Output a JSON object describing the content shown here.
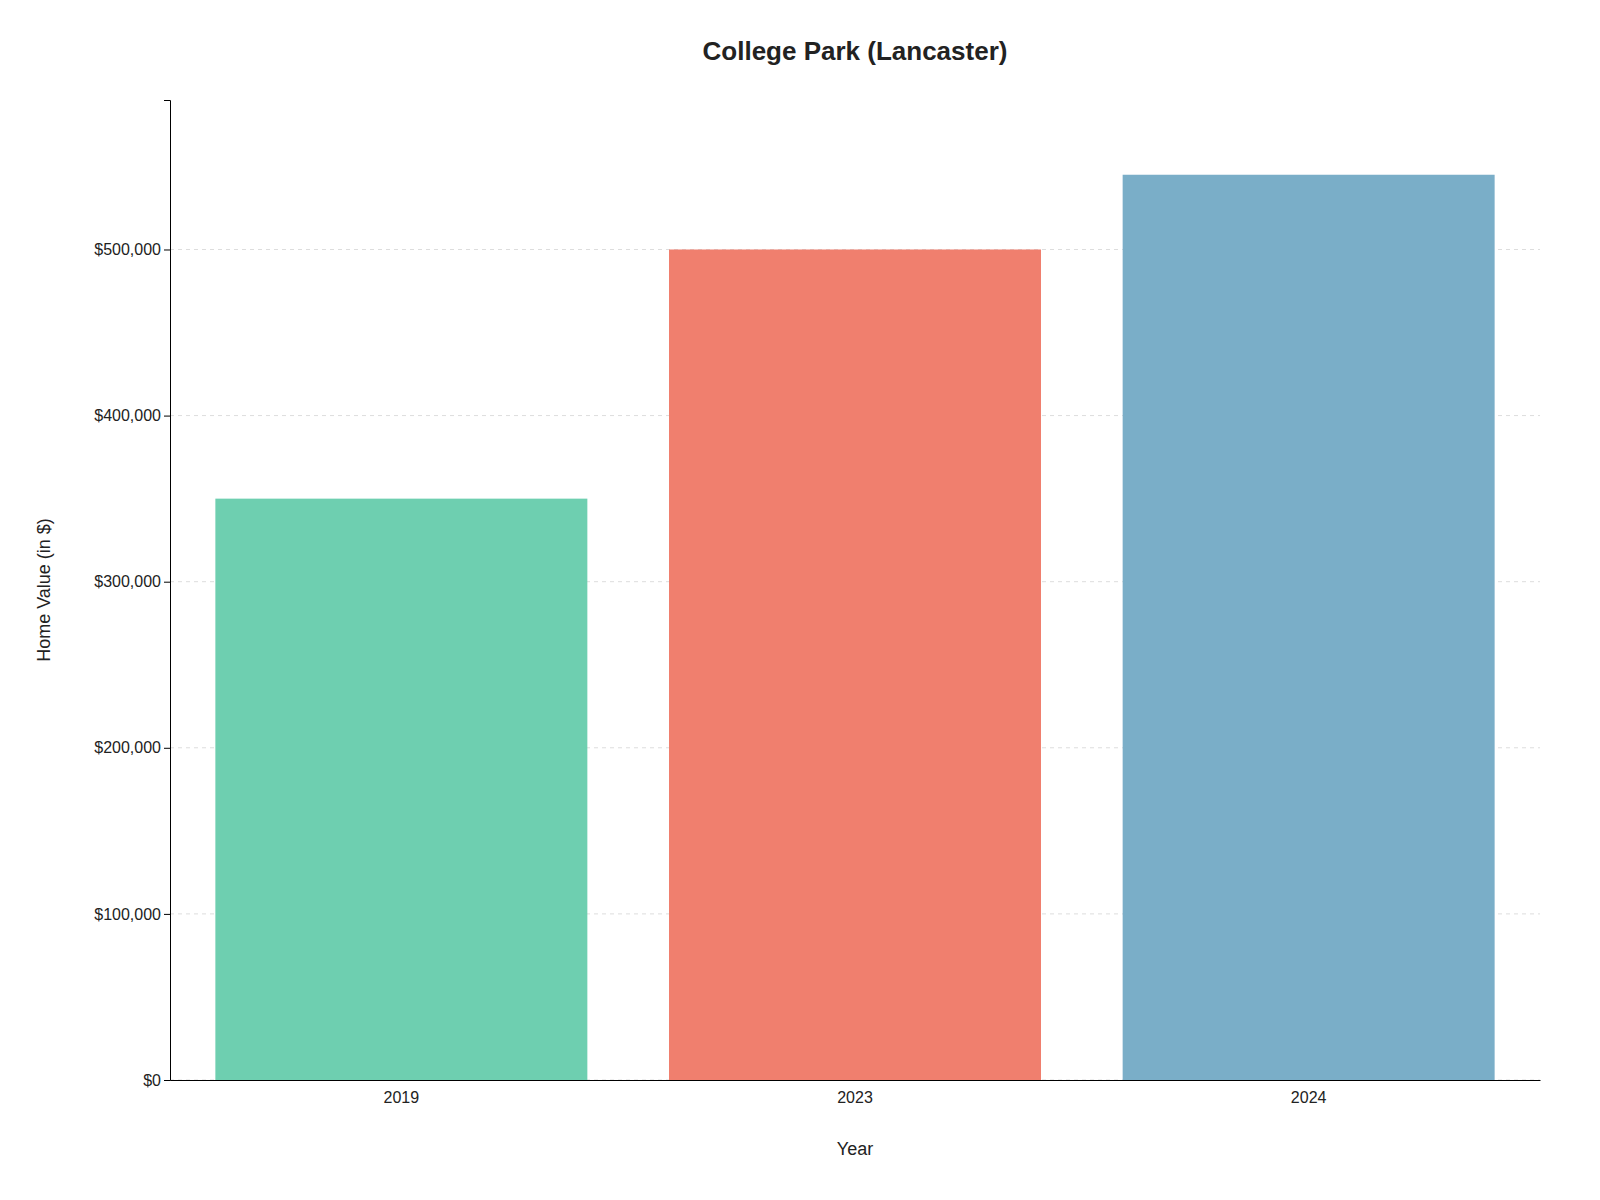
{
  "chart_data": {
    "type": "bar",
    "title": "College Park (Lancaster)",
    "categories": [
      "2019",
      "2023",
      "2024"
    ],
    "values": [
      350000,
      500000,
      545000
    ],
    "colors": [
      "#6ecfb0",
      "#f07f6e",
      "#7aaec8"
    ],
    "xlabel": "Year",
    "ylabel": "Home Value (in $)",
    "ylim": [
      0,
      590000
    ],
    "yticks": [
      {
        "value": 0,
        "label": "$0"
      },
      {
        "value": 100000,
        "label": "$100,000"
      },
      {
        "value": 200000,
        "label": "$200,000"
      },
      {
        "value": 300000,
        "label": "$300,000"
      },
      {
        "value": 400000,
        "label": "$400,000"
      },
      {
        "value": 500000,
        "label": "$500,000"
      }
    ],
    "grid": true
  }
}
